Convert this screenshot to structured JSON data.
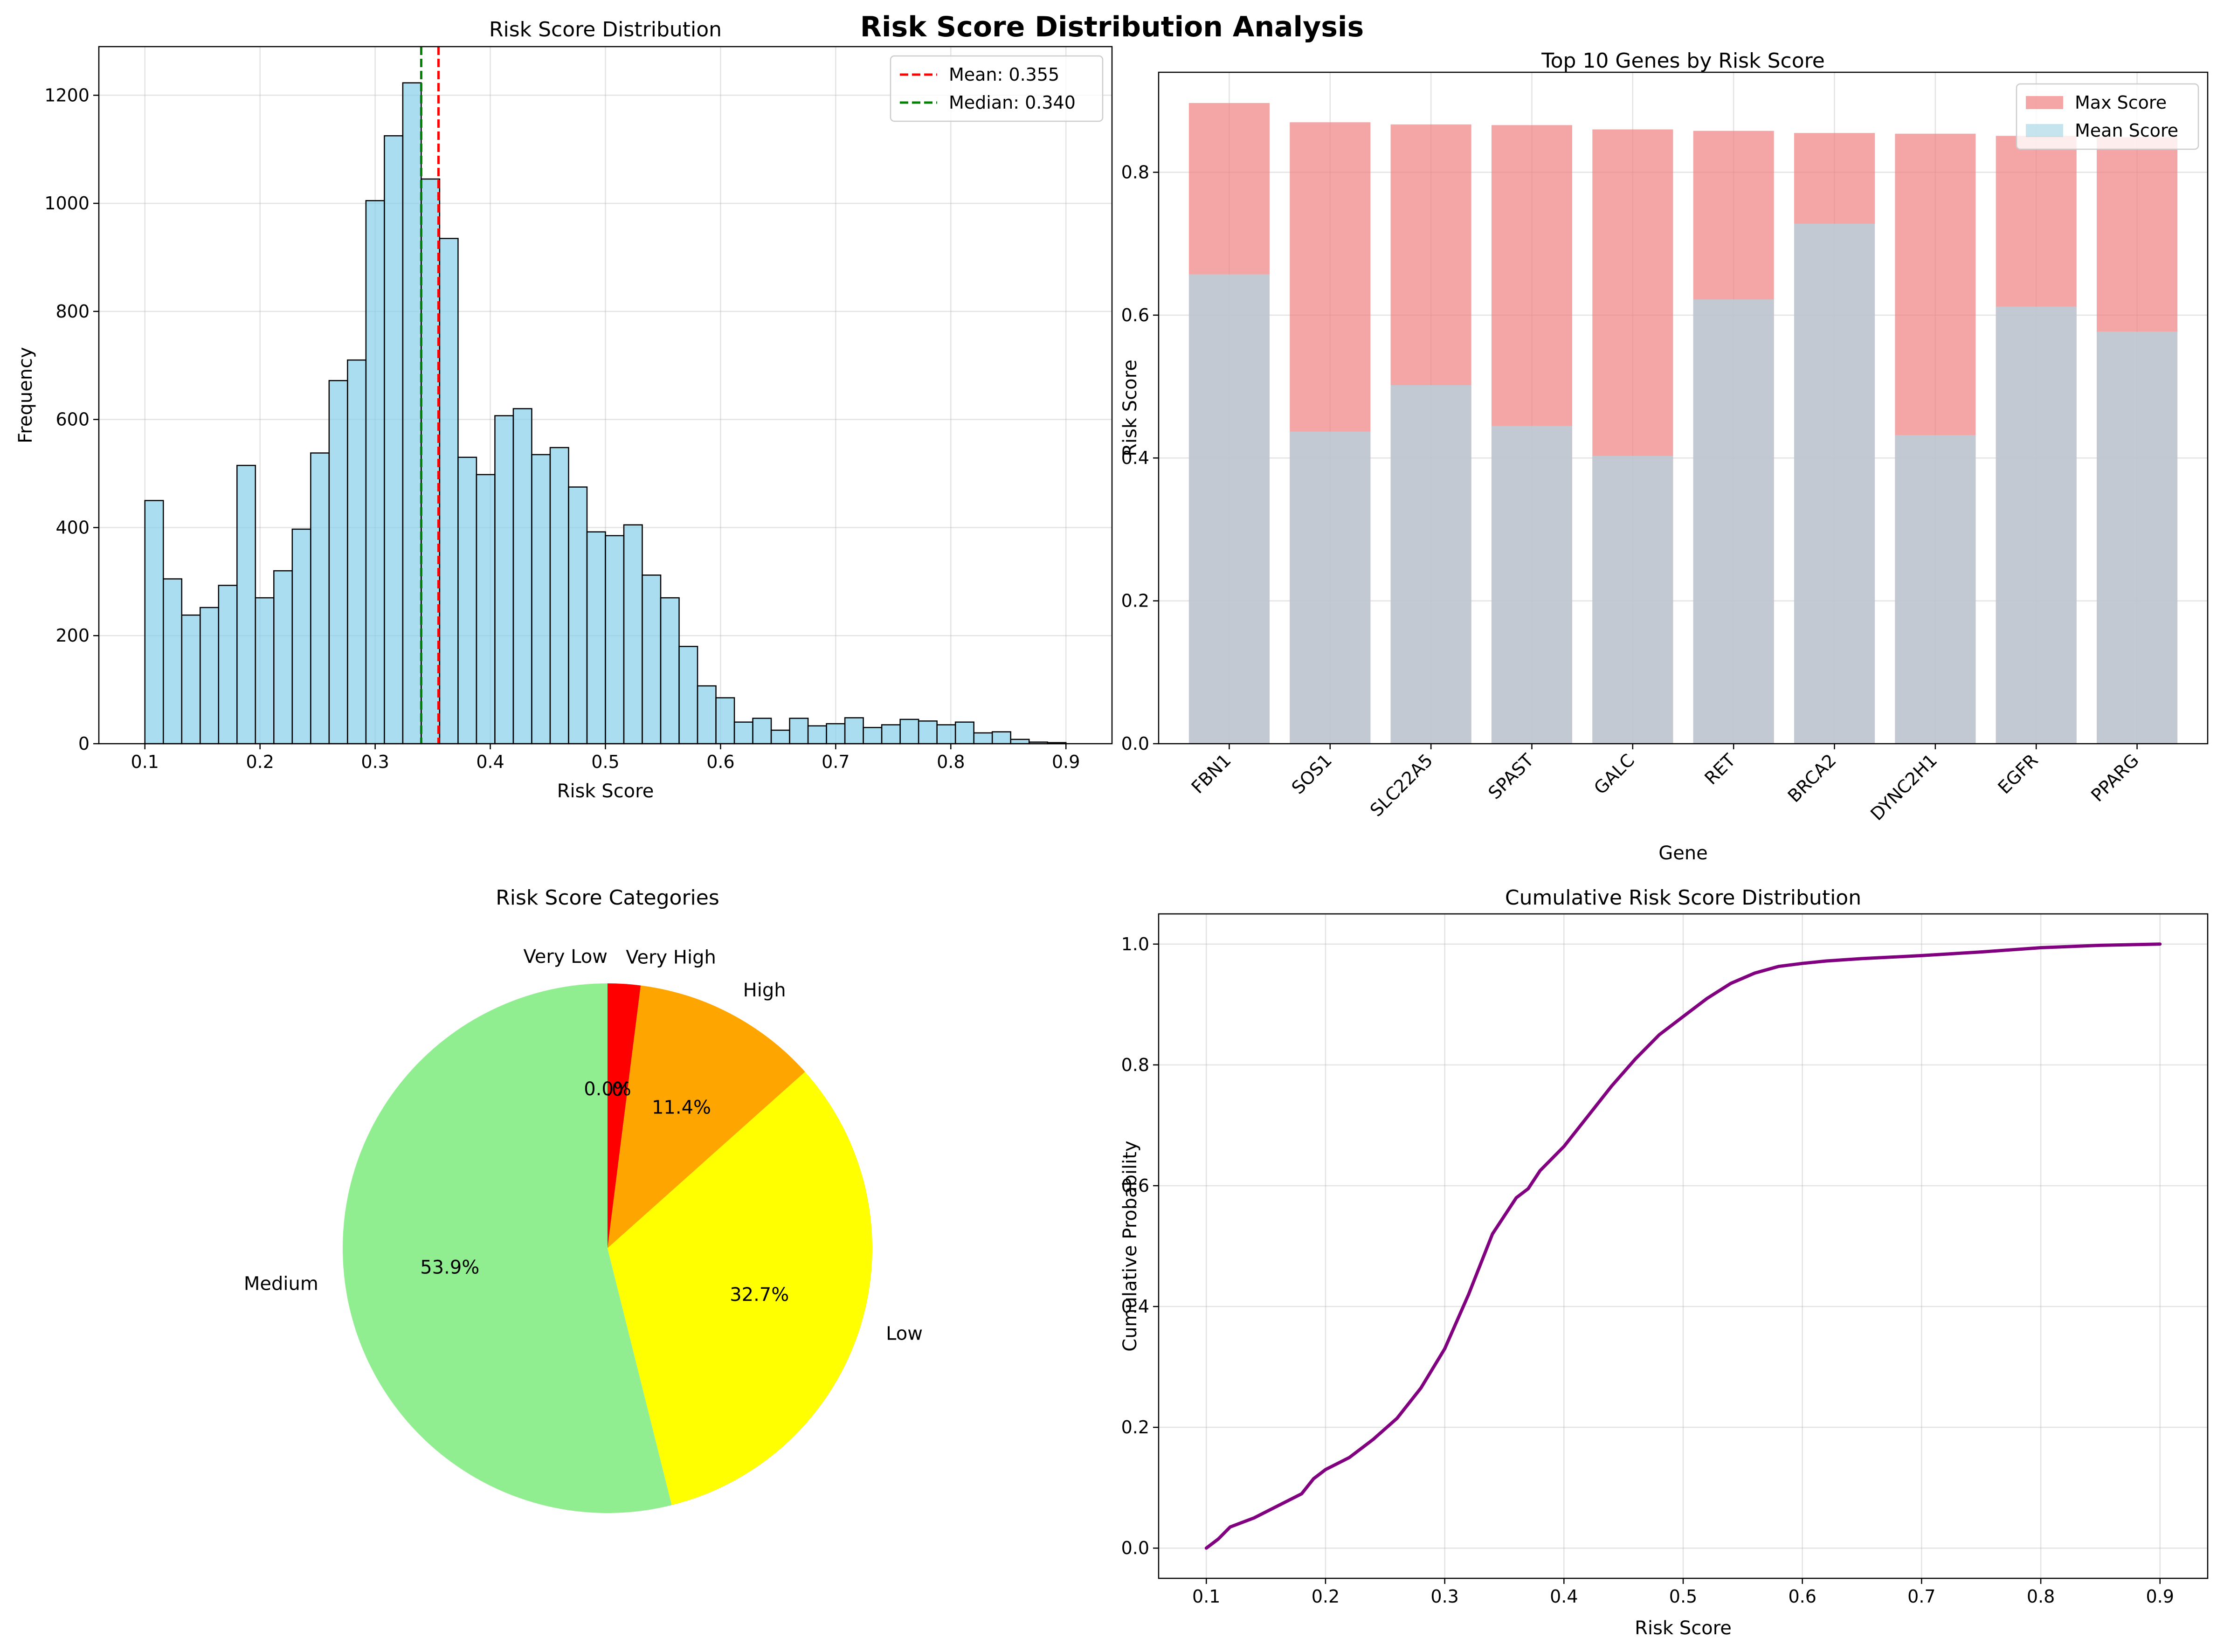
{
  "suptitle": "Risk Score Distribution Analysis",
  "chart_data": [
    {
      "type": "bar",
      "subtype": "histogram",
      "title": "Risk Score Distribution",
      "xlabel": "Risk Score",
      "ylabel": "Frequency",
      "xlim": [
        0.06,
        0.94
      ],
      "ylim": [
        0,
        1290
      ],
      "xticks": [
        0.1,
        0.2,
        0.3,
        0.4,
        0.5,
        0.6,
        0.7,
        0.8,
        0.9
      ],
      "xtick_labels": [
        "0.1",
        "0.2",
        "0.3",
        "0.4",
        "0.5",
        "0.6",
        "0.7",
        "0.8",
        "0.9"
      ],
      "yticks": [
        0,
        200,
        400,
        600,
        800,
        1000,
        1200
      ],
      "ytick_labels": [
        "0",
        "200",
        "400",
        "600",
        "800",
        "1000",
        "1200"
      ],
      "bin_start": 0.1,
      "bin_width": 0.016,
      "values": [
        450,
        305,
        238,
        252,
        293,
        515,
        270,
        320,
        397,
        538,
        672,
        710,
        1005,
        1125,
        1223,
        1045,
        935,
        530,
        498,
        607,
        620,
        535,
        548,
        475,
        392,
        385,
        405,
        312,
        270,
        180,
        107,
        85,
        40,
        47,
        25,
        47,
        33,
        37,
        48,
        30,
        35,
        45,
        42,
        35,
        40,
        20,
        22,
        8,
        3,
        2
      ],
      "bar_color": "#87CEEB",
      "edge_color": "#000000",
      "grid": true,
      "legend_position": "top-right",
      "lines": [
        {
          "label": "Mean: 0.355",
          "x": 0.355,
          "color": "#ff0000"
        },
        {
          "label": "Median: 0.340",
          "x": 0.34,
          "color": "#008000"
        }
      ]
    },
    {
      "type": "bar",
      "subtype": "overlapping",
      "title": "Top 10 Genes by Risk Score",
      "xlabel": "Gene",
      "ylabel": "Risk Score",
      "ylim": [
        0,
        0.94
      ],
      "yticks": [
        0.0,
        0.2,
        0.4,
        0.6,
        0.8
      ],
      "ytick_labels": [
        "0.0",
        "0.2",
        "0.4",
        "0.6",
        "0.8"
      ],
      "categories": [
        "FBN1",
        "SOS1",
        "SLC22A5",
        "SPAST",
        "GALC",
        "RET",
        "BRCA2",
        "DYNC2H1",
        "EGFR",
        "PPARG"
      ],
      "series": [
        {
          "name": "Max Score",
          "color": "#F08080",
          "values": [
            0.897,
            0.87,
            0.867,
            0.866,
            0.86,
            0.858,
            0.855,
            0.854,
            0.851,
            0.849
          ]
        },
        {
          "name": "Mean Score",
          "color": "#ADD8E6",
          "values": [
            0.657,
            0.437,
            0.502,
            0.445,
            0.403,
            0.622,
            0.728,
            0.432,
            0.612,
            0.577
          ]
        }
      ],
      "grid": true,
      "legend_position": "top-right"
    },
    {
      "type": "pie",
      "title": "Risk Score Categories",
      "labels": [
        "Very High",
        "High",
        "Low",
        "Medium",
        "Very Low"
      ],
      "values": [
        2.0,
        11.4,
        32.7,
        53.9,
        0.0
      ],
      "pct_labels": [
        "2.0%",
        "11.4%",
        "32.7%",
        "53.9%",
        "0.0%"
      ],
      "colors": [
        "#ff0000",
        "#FFA500",
        "#FFFF00",
        "#90EE90",
        "#ADD8E6"
      ]
    },
    {
      "type": "line",
      "title": "Cumulative Risk Score Distribution",
      "xlabel": "Risk Score",
      "ylabel": "Cumulative Probability",
      "xlim": [
        0.06,
        0.94
      ],
      "ylim": [
        -0.05,
        1.05
      ],
      "xticks": [
        0.1,
        0.2,
        0.3,
        0.4,
        0.5,
        0.6,
        0.7,
        0.8,
        0.9
      ],
      "xtick_labels": [
        "0.1",
        "0.2",
        "0.3",
        "0.4",
        "0.5",
        "0.6",
        "0.7",
        "0.8",
        "0.9"
      ],
      "yticks": [
        0.0,
        0.2,
        0.4,
        0.6,
        0.8,
        1.0
      ],
      "ytick_labels": [
        "0.0",
        "0.2",
        "0.4",
        "0.6",
        "0.8",
        "1.0"
      ],
      "color": "#800080",
      "grid": true,
      "x": [
        0.1,
        0.11,
        0.12,
        0.14,
        0.16,
        0.18,
        0.19,
        0.2,
        0.22,
        0.24,
        0.26,
        0.28,
        0.3,
        0.32,
        0.34,
        0.36,
        0.37,
        0.38,
        0.4,
        0.42,
        0.44,
        0.46,
        0.48,
        0.5,
        0.52,
        0.54,
        0.56,
        0.58,
        0.6,
        0.62,
        0.65,
        0.7,
        0.75,
        0.8,
        0.85,
        0.9
      ],
      "y": [
        0.0,
        0.015,
        0.035,
        0.05,
        0.07,
        0.09,
        0.115,
        0.13,
        0.15,
        0.18,
        0.215,
        0.265,
        0.33,
        0.42,
        0.52,
        0.58,
        0.595,
        0.625,
        0.665,
        0.715,
        0.765,
        0.81,
        0.85,
        0.88,
        0.91,
        0.935,
        0.952,
        0.963,
        0.968,
        0.972,
        0.976,
        0.981,
        0.987,
        0.994,
        0.998,
        1.0
      ]
    }
  ]
}
